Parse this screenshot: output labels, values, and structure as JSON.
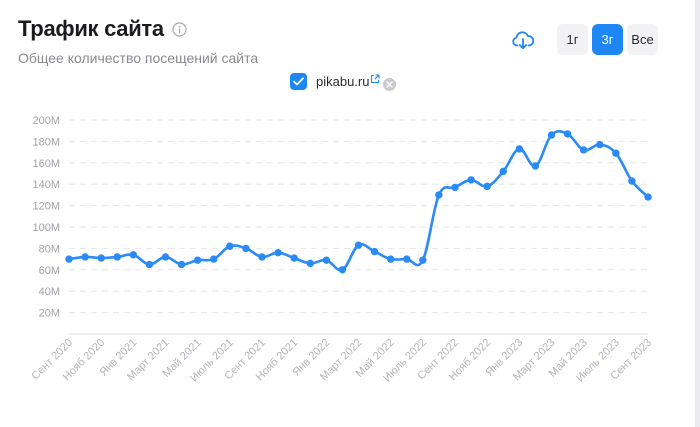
{
  "header": {
    "title": "Трафик сайта",
    "subtitle": "Общее количество посещений сайта"
  },
  "controls": {
    "ranges": [
      "1г",
      "3г",
      "Все"
    ],
    "active_range": "3г"
  },
  "legend": {
    "series_label": "pikabu.ru",
    "checked": true
  },
  "colors": {
    "accent": "#1f86f5",
    "line": "#2a8af6",
    "grid": "#e6e6ea"
  },
  "chart_data": {
    "type": "line",
    "x": [
      "Сент 2020",
      "Окт 2020",
      "Нояб 2020",
      "Дек 2020",
      "Янв 2021",
      "Февр 2021",
      "Март 2021",
      "Апр 2021",
      "Май 2021",
      "Июнь 2021",
      "Июль 2021",
      "Авг 2021",
      "Сент 2021",
      "Окт 2021",
      "Нояб 2021",
      "Дек 2021",
      "Янв 2022",
      "Февр 2022",
      "Март 2022",
      "Апр 2022",
      "Май 2022",
      "Июнь 2022",
      "Июль 2022",
      "Авг 2022",
      "Сент 2022",
      "Окт 2022",
      "Нояб 2022",
      "Дек 2022",
      "Янв 2023",
      "Февр 2023",
      "Март 2023",
      "Апр 2023",
      "Май 2023",
      "Июнь 2023",
      "Июль 2023",
      "Авг 2023",
      "Сент 2023"
    ],
    "tick_labels": [
      "Сент 2020",
      "Нояб 2020",
      "Янв 2021",
      "Март 2021",
      "Май 2021",
      "Июль 2021",
      "Сент 2021",
      "Нояб 2021",
      "Янв 2022",
      "Март 2022",
      "Май 2022",
      "Июль 2022",
      "Сент 2022",
      "Нояб 2022",
      "Янв 2023",
      "Март 2023",
      "Май 2023",
      "Июль 2023",
      "Сент 2023"
    ],
    "series": [
      {
        "values": [
          70,
          72,
          71,
          72,
          74,
          65,
          72,
          65,
          69,
          70,
          82,
          80,
          72,
          76,
          71,
          66,
          69,
          60,
          83,
          77,
          70,
          70,
          69,
          130,
          137,
          144,
          138,
          152,
          173,
          157,
          186,
          187,
          172,
          177,
          169,
          143,
          128
        ]
      }
    ],
    "y_ticks": [
      "20M",
      "40M",
      "60M",
      "80M",
      "100M",
      "120M",
      "140M",
      "160M",
      "180M",
      "200M"
    ],
    "ylim": [
      0,
      200
    ],
    "y_unit": "M",
    "grid": true
  }
}
